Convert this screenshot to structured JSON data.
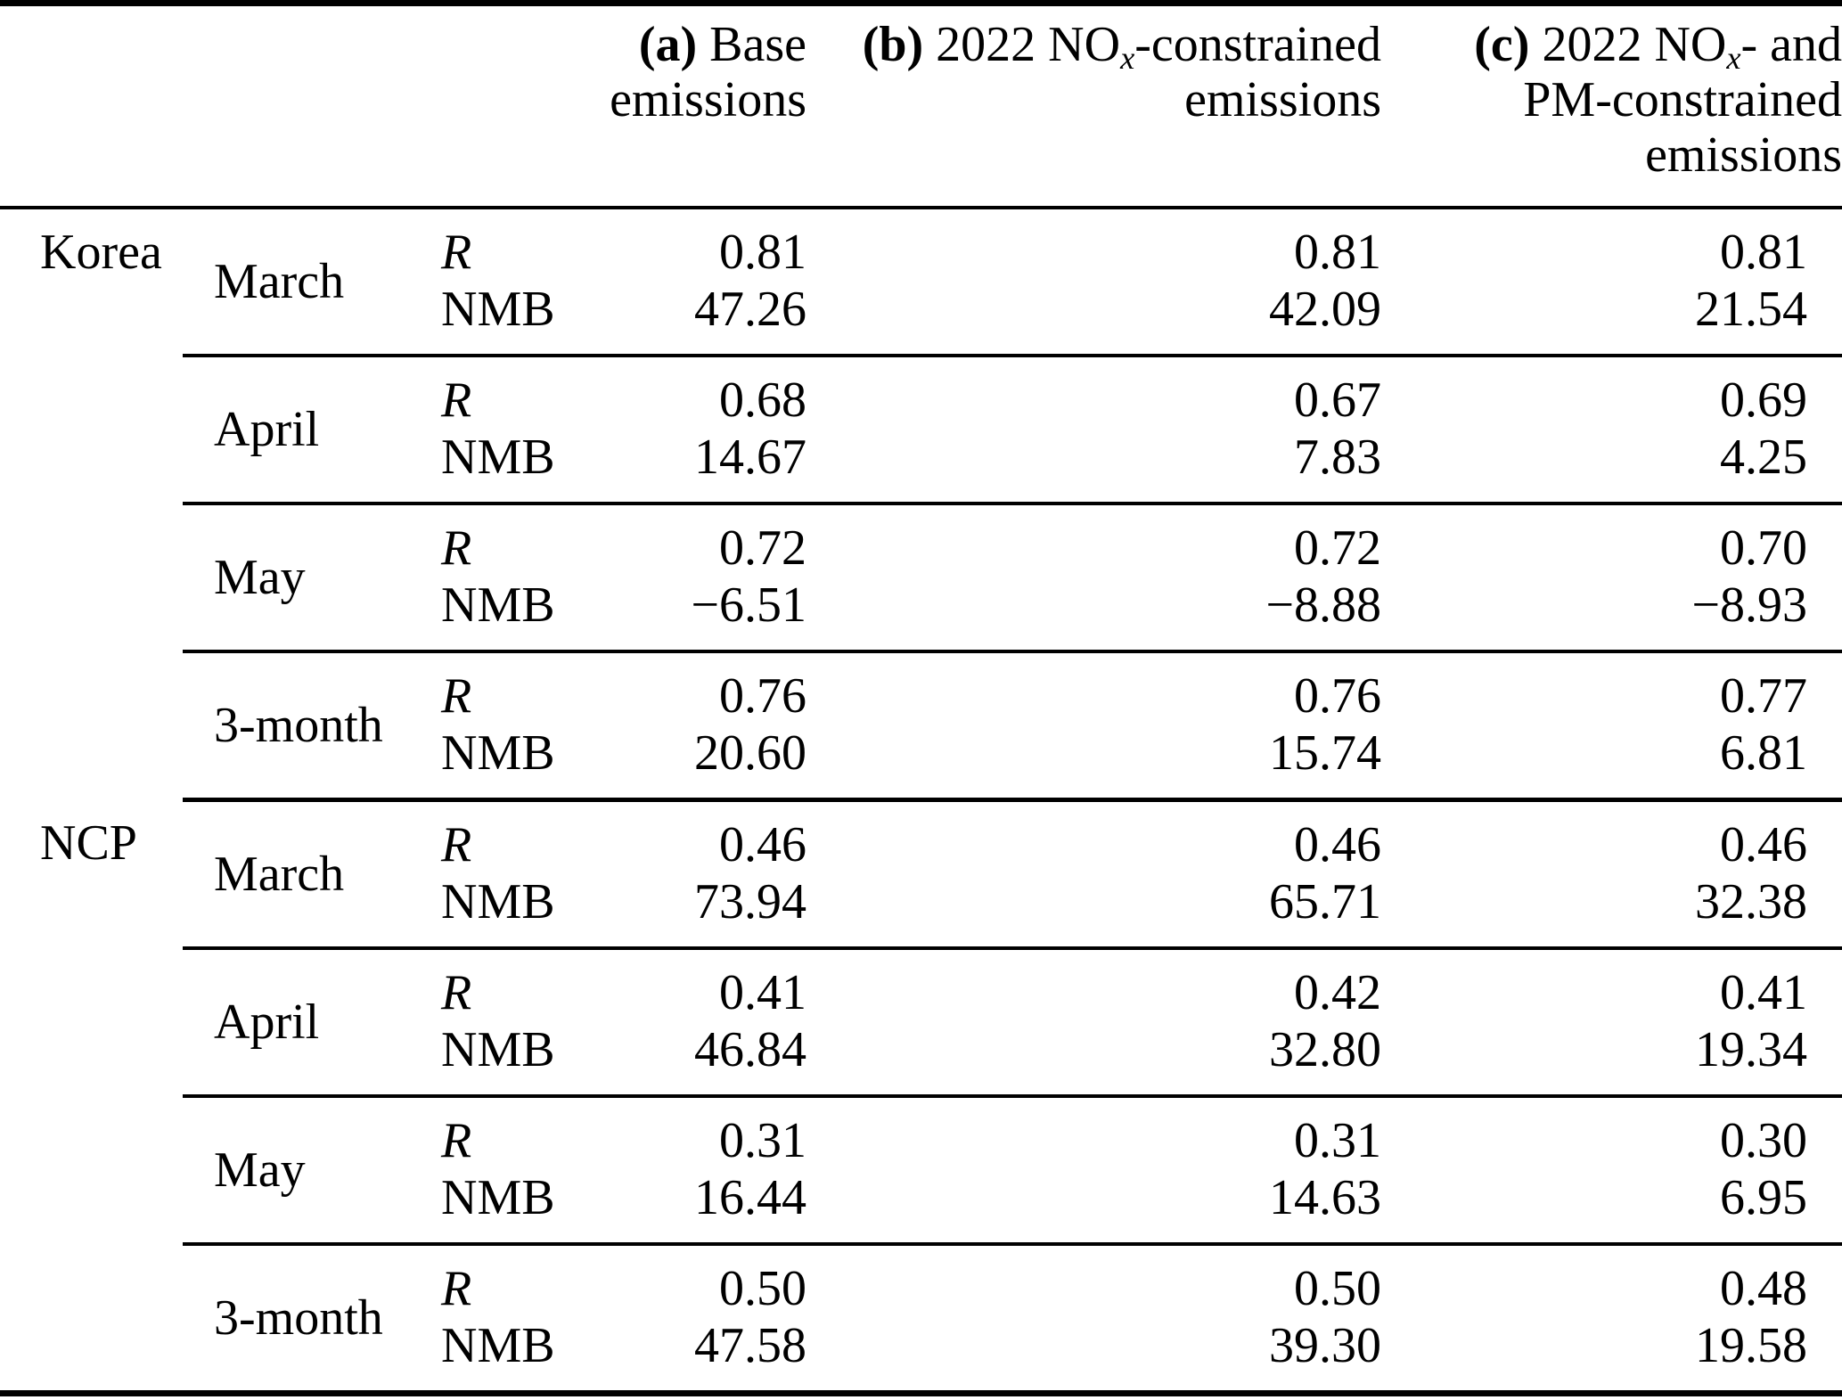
{
  "colors": {
    "background": "#ffffff",
    "text": "#000000",
    "rule": "#000000"
  },
  "table": {
    "headers": {
      "a": {
        "tag": "(a)",
        "rest": " Base",
        "line2": "emissions"
      },
      "b": {
        "tag": "(b)",
        "pre": " 2022 NO",
        "sub": "x",
        "post": "-constrained",
        "line2": "emissions"
      },
      "c": {
        "tag": "(c)",
        "pre": " 2022 NO",
        "sub": "x",
        "post": "- and",
        "line2": "PM-constrained",
        "line3": "emissions"
      }
    },
    "metric_labels": {
      "r": "R",
      "nmb": "NMB"
    },
    "sections": [
      {
        "region": "Korea",
        "groups": [
          {
            "month": "March",
            "r": {
              "a": "0.81",
              "b": "0.81",
              "c": "0.81"
            },
            "nmb": {
              "a": "47.26",
              "b": "42.09",
              "c": "21.54"
            }
          },
          {
            "month": "April",
            "r": {
              "a": "0.68",
              "b": "0.67",
              "c": "0.69"
            },
            "nmb": {
              "a": "14.67",
              "b": "7.83",
              "c": "4.25"
            }
          },
          {
            "month": "May",
            "r": {
              "a": "0.72",
              "b": "0.72",
              "c": "0.70"
            },
            "nmb": {
              "a": "−6.51",
              "b": "−8.88",
              "c": "−8.93"
            }
          },
          {
            "month": "3-month",
            "r": {
              "a": "0.76",
              "b": "0.76",
              "c": "0.77"
            },
            "nmb": {
              "a": "20.60",
              "b": "15.74",
              "c": "6.81"
            }
          }
        ]
      },
      {
        "region": "NCP",
        "groups": [
          {
            "month": "March",
            "r": {
              "a": "0.46",
              "b": "0.46",
              "c": "0.46"
            },
            "nmb": {
              "a": "73.94",
              "b": "65.71",
              "c": "32.38"
            }
          },
          {
            "month": "April",
            "r": {
              "a": "0.41",
              "b": "0.42",
              "c": "0.41"
            },
            "nmb": {
              "a": "46.84",
              "b": "32.80",
              "c": "19.34"
            }
          },
          {
            "month": "May",
            "r": {
              "a": "0.31",
              "b": "0.31",
              "c": "0.30"
            },
            "nmb": {
              "a": "16.44",
              "b": "14.63",
              "c": "6.95"
            }
          },
          {
            "month": "3-month",
            "r": {
              "a": "0.50",
              "b": "0.50",
              "c": "0.48"
            },
            "nmb": {
              "a": "47.58",
              "b": "39.30",
              "c": "19.58"
            }
          }
        ]
      }
    ]
  }
}
